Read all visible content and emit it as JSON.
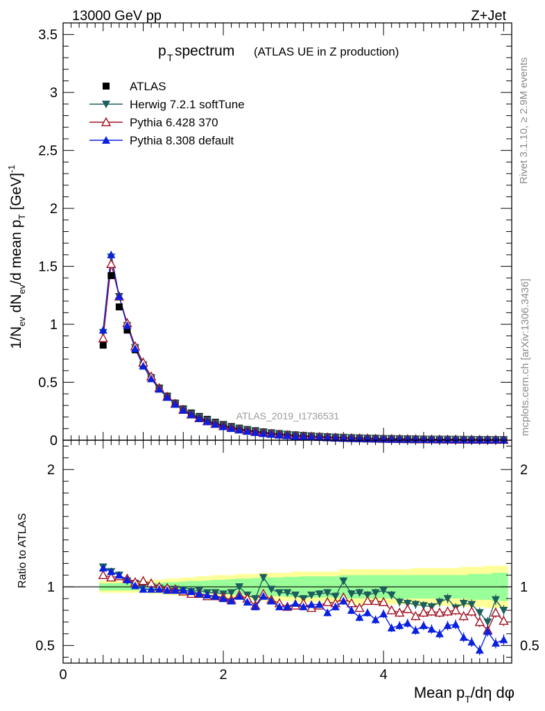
{
  "header": {
    "energy": "13000 GeV pp",
    "process": "Z+Jet"
  },
  "title": {
    "main": "p",
    "sub": "T",
    "rest": " spectrum",
    "note": "(ATLAS UE in Z production)"
  },
  "side": {
    "rivet": "Rivet 3.1.10, ≥ 2.9M events",
    "mcplots": "mcplots.cern.ch [arXiv:1306.3436]"
  },
  "watermark": "ATLAS_2019_I1736531",
  "legend": [
    {
      "label": "ATLAS",
      "color": "#000000",
      "marker": "square"
    },
    {
      "label": "Herwig 7.2.1 softTune",
      "color": "#1b5e5e",
      "marker": "triangle-down"
    },
    {
      "label": "Pythia 6.428 370",
      "color": "#a01020",
      "marker": "triangle-up-open"
    },
    {
      "label": "Pythia 8.308 default",
      "color": "#0a20e0",
      "marker": "triangle-up"
    }
  ],
  "chart_data": [
    {
      "type": "scatter",
      "name": "main",
      "ylabel": "1/N_ev dN_ev/d mean p_T [GeV]^-1",
      "ylim": [
        0,
        3.6
      ],
      "xlim": [
        0,
        5.6
      ],
      "yticks": [
        "0",
        "0.5",
        "1",
        "1.5",
        "2",
        "2.5",
        "3",
        "3.5"
      ],
      "x": [
        0.5,
        0.6,
        0.7,
        0.8,
        0.9,
        1.0,
        1.1,
        1.2,
        1.3,
        1.4,
        1.5,
        1.6,
        1.7,
        1.8,
        1.9,
        2.0,
        2.1,
        2.2,
        2.3,
        2.4,
        2.5,
        2.6,
        2.7,
        2.8,
        2.9,
        3.0,
        3.1,
        3.2,
        3.3,
        3.4,
        3.5,
        3.6,
        3.7,
        3.8,
        3.9,
        4.0,
        4.1,
        4.2,
        4.3,
        4.4,
        4.5,
        4.6,
        4.7,
        4.8,
        4.9,
        5.0,
        5.1,
        5.2,
        5.3,
        5.4,
        5.5
      ],
      "series": [
        {
          "name": "ATLAS",
          "values": [
            0.82,
            1.42,
            1.15,
            0.95,
            0.78,
            0.64,
            0.54,
            0.45,
            0.38,
            0.32,
            0.27,
            0.235,
            0.205,
            0.18,
            0.155,
            0.135,
            0.118,
            0.104,
            0.092,
            0.082,
            0.072,
            0.064,
            0.057,
            0.051,
            0.046,
            0.041,
            0.037,
            0.033,
            0.03,
            0.027,
            0.025,
            0.022,
            0.02,
            0.018,
            0.017,
            0.015,
            0.014,
            0.013,
            0.012,
            0.011,
            0.01,
            0.009,
            0.0085,
            0.008,
            0.0075,
            0.007,
            0.0065,
            0.006,
            0.0056,
            0.0052,
            0.0048
          ]
        },
        {
          "name": "Herwig 7.2.1 softTune",
          "values": [
            0.93,
            1.58,
            1.24,
            0.99,
            0.8,
            0.65,
            0.54,
            0.445,
            0.375,
            0.315,
            0.265,
            0.228,
            0.2,
            0.173,
            0.149,
            0.129,
            0.113,
            0.1,
            0.088,
            0.078,
            0.069,
            0.061,
            0.054,
            0.048,
            0.043,
            0.038,
            0.034,
            0.031,
            0.028,
            0.025,
            0.023,
            0.021,
            0.019,
            0.017,
            0.016,
            0.014,
            0.013,
            0.012,
            0.011,
            0.01,
            0.0092,
            0.0085,
            0.008,
            0.0075,
            0.007,
            0.0065,
            0.006,
            0.0055,
            0.0051,
            0.0047,
            0.0043
          ]
        },
        {
          "name": "Pythia 6.428 370",
          "values": [
            0.88,
            1.52,
            1.24,
            1.01,
            0.81,
            0.67,
            0.55,
            0.45,
            0.375,
            0.315,
            0.262,
            0.222,
            0.19,
            0.164,
            0.141,
            0.122,
            0.106,
            0.093,
            0.082,
            0.072,
            0.063,
            0.055,
            0.049,
            0.043,
            0.038,
            0.034,
            0.031,
            0.028,
            0.025,
            0.022,
            0.02,
            0.018,
            0.016,
            0.015,
            0.013,
            0.012,
            0.011,
            0.01,
            0.009,
            0.0083,
            0.0076,
            0.0069,
            0.0063,
            0.0058,
            0.0053,
            0.0049,
            0.0045,
            0.0041,
            0.0038,
            0.0035,
            0.0032
          ]
        },
        {
          "name": "Pythia 8.308 default",
          "values": [
            0.95,
            1.6,
            1.24,
            0.99,
            0.79,
            0.64,
            0.53,
            0.44,
            0.37,
            0.31,
            0.26,
            0.22,
            0.188,
            0.16,
            0.137,
            0.117,
            0.101,
            0.088,
            0.076,
            0.067,
            0.058,
            0.051,
            0.044,
            0.039,
            0.034,
            0.03,
            0.027,
            0.024,
            0.021,
            0.019,
            0.017,
            0.015,
            0.013,
            0.012,
            0.011,
            0.0095,
            0.0086,
            0.0078,
            0.007,
            0.0064,
            0.0058,
            0.0052,
            0.0047,
            0.0043,
            0.0039,
            0.0035,
            0.0032,
            0.0029,
            0.0026,
            0.0024,
            0.0022
          ]
        }
      ]
    },
    {
      "type": "line",
      "name": "ratio",
      "ylabel": "Ratio to ATLAS",
      "xlabel": "Mean p_T/dη dφ",
      "ylim": [
        0.35,
        2.25
      ],
      "xlim": [
        0,
        5.6
      ],
      "xticks": [
        "0",
        "2",
        "4"
      ],
      "yticks": [
        "0.5",
        "1",
        "2"
      ],
      "x": [
        0.5,
        0.6,
        0.7,
        0.8,
        0.9,
        1.0,
        1.1,
        1.2,
        1.3,
        1.4,
        1.5,
        1.6,
        1.7,
        1.8,
        1.9,
        2.0,
        2.1,
        2.2,
        2.3,
        2.4,
        2.5,
        2.6,
        2.7,
        2.8,
        2.9,
        3.0,
        3.1,
        3.2,
        3.3,
        3.4,
        3.5,
        3.6,
        3.7,
        3.8,
        3.9,
        4.0,
        4.1,
        4.2,
        4.3,
        4.4,
        4.5,
        4.6,
        4.7,
        4.8,
        4.9,
        5.0,
        5.1,
        5.2,
        5.3,
        5.4,
        5.5
      ],
      "band_stat_rel": [
        0.03,
        0.03,
        0.03,
        0.03,
        0.03,
        0.03,
        0.03,
        0.035,
        0.04,
        0.04,
        0.045,
        0.05,
        0.05,
        0.055,
        0.06,
        0.06,
        0.065,
        0.07,
        0.07,
        0.075,
        0.08,
        0.08,
        0.08,
        0.085,
        0.085,
        0.09,
        0.09,
        0.09,
        0.09,
        0.09,
        0.1,
        0.1,
        0.1,
        0.1,
        0.1,
        0.1,
        0.1,
        0.1,
        0.1,
        0.1,
        0.1,
        0.1,
        0.1,
        0.1,
        0.1,
        0.1,
        0.11,
        0.11,
        0.11,
        0.12,
        0.12
      ],
      "band_tot_rel": [
        0.05,
        0.05,
        0.05,
        0.05,
        0.05,
        0.05,
        0.06,
        0.06,
        0.07,
        0.07,
        0.08,
        0.08,
        0.09,
        0.09,
        0.1,
        0.1,
        0.1,
        0.11,
        0.11,
        0.11,
        0.12,
        0.12,
        0.12,
        0.12,
        0.13,
        0.13,
        0.13,
        0.13,
        0.13,
        0.13,
        0.15,
        0.15,
        0.15,
        0.15,
        0.15,
        0.15,
        0.15,
        0.15,
        0.15,
        0.16,
        0.16,
        0.16,
        0.16,
        0.16,
        0.16,
        0.17,
        0.17,
        0.17,
        0.18,
        0.18,
        0.18
      ],
      "series": [
        {
          "name": "Herwig 7.2.1 softTune",
          "values": [
            1.17,
            1.13,
            1.1,
            1.05,
            1.03,
            1.0,
            1.0,
            0.99,
            0.98,
            0.98,
            0.97,
            0.96,
            0.97,
            0.95,
            0.95,
            0.94,
            0.95,
            1.0,
            0.93,
            0.9,
            1.08,
            0.98,
            0.95,
            0.95,
            0.93,
            0.9,
            0.93,
            0.94,
            0.95,
            0.92,
            1.05,
            0.94,
            0.95,
            0.93,
            0.95,
            0.97,
            0.93,
            0.87,
            0.86,
            0.85,
            0.84,
            0.83,
            0.87,
            0.9,
            0.82,
            0.86,
            0.85,
            0.78,
            0.7,
            0.89,
            0.8
          ]
        },
        {
          "name": "Pythia 6.428 370",
          "values": [
            1.1,
            1.08,
            1.09,
            1.07,
            1.04,
            1.05,
            1.03,
            1.0,
            0.99,
            0.98,
            0.96,
            0.94,
            0.94,
            0.92,
            0.92,
            0.91,
            0.89,
            0.93,
            0.9,
            0.84,
            0.94,
            0.89,
            0.86,
            0.83,
            0.84,
            0.86,
            0.82,
            0.84,
            0.87,
            0.86,
            0.91,
            0.86,
            0.82,
            0.88,
            0.88,
            0.87,
            0.8,
            0.78,
            0.81,
            0.75,
            0.78,
            0.79,
            0.78,
            0.79,
            0.8,
            0.75,
            0.79,
            0.7,
            0.63,
            0.78,
            0.71
          ]
        },
        {
          "name": "Pythia 8.308 default",
          "values": [
            1.16,
            1.13,
            1.1,
            1.06,
            1.01,
            0.98,
            0.98,
            0.98,
            0.97,
            0.97,
            0.97,
            0.96,
            0.94,
            0.93,
            0.92,
            0.9,
            0.88,
            0.92,
            0.87,
            0.83,
            0.92,
            0.88,
            0.83,
            0.83,
            0.86,
            0.83,
            0.85,
            0.85,
            0.78,
            0.83,
            0.88,
            0.8,
            0.74,
            0.78,
            0.72,
            0.77,
            0.65,
            0.67,
            0.69,
            0.63,
            0.67,
            0.64,
            0.6,
            0.67,
            0.68,
            0.57,
            0.53,
            0.46,
            0.62,
            0.52,
            0.55
          ]
        }
      ]
    }
  ]
}
